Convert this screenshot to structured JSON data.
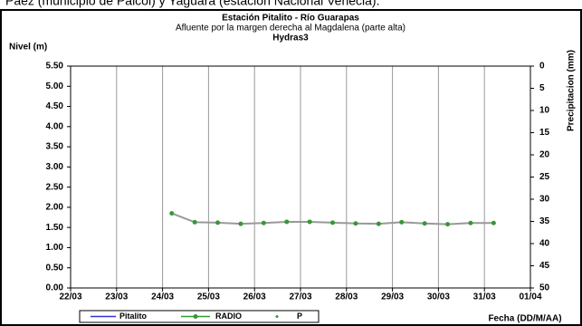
{
  "header_text": "Páez (municipio de Paicol) y Yaguará (estación Nacional Venecia).",
  "chart_data": {
    "type": "line",
    "title": "Estación Pitalito  - Río Guarapas",
    "subtitle": "Afluente por la margen derecha al Magdalena (parte alta)",
    "source": "Hydras3",
    "y_label": "Nivel (m)",
    "y2_label": "Precipitacion (mm)",
    "x_label": "Fecha (DD/M/AA)",
    "x": [
      2.2,
      2.7,
      3.2,
      3.7,
      4.2,
      4.7,
      5.2,
      5.7,
      6.2,
      6.7,
      7.2,
      7.7,
      8.2,
      8.7,
      9.2
    ],
    "series": [
      {
        "name": "Pitalito",
        "color": "#3333cc",
        "values": [
          null,
          null,
          null,
          null,
          null,
          null,
          null,
          null,
          null,
          null,
          null,
          null,
          null,
          null,
          null
        ]
      },
      {
        "name": "RADIO",
        "color": "#339933",
        "line_color": "#999999",
        "values": [
          1.85,
          1.63,
          1.62,
          1.59,
          1.61,
          1.64,
          1.64,
          1.62,
          1.6,
          1.59,
          1.63,
          1.6,
          1.58,
          1.61,
          1.61
        ]
      },
      {
        "name": "P",
        "color": "#339933",
        "axis": "y2",
        "values": [
          null,
          null,
          null,
          null,
          null,
          null,
          null,
          null,
          null,
          null,
          null,
          null,
          null,
          null,
          null
        ]
      }
    ],
    "xlim": [
      0,
      10
    ],
    "xticks": [
      {
        "value": 0,
        "label": "22/03"
      },
      {
        "value": 1,
        "label": "23/03"
      },
      {
        "value": 2,
        "label": "24/03"
      },
      {
        "value": 3,
        "label": "25/03"
      },
      {
        "value": 4,
        "label": "26/03"
      },
      {
        "value": 5,
        "label": "27/03"
      },
      {
        "value": 6,
        "label": "28/03"
      },
      {
        "value": 7,
        "label": "29/03"
      },
      {
        "value": 8,
        "label": "30/03"
      },
      {
        "value": 9,
        "label": "31/03"
      },
      {
        "value": 10,
        "label": "01/04"
      }
    ],
    "ylim": [
      0,
      5.5
    ],
    "yticks": [
      {
        "value": 0,
        "label": "0.00"
      },
      {
        "value": 0.5,
        "label": "0.50"
      },
      {
        "value": 1,
        "label": "1.00"
      },
      {
        "value": 1.5,
        "label": "1.50"
      },
      {
        "value": 2,
        "label": "2.00"
      },
      {
        "value": 2.5,
        "label": "2.50"
      },
      {
        "value": 3,
        "label": "3.00"
      },
      {
        "value": 3.5,
        "label": "3.50"
      },
      {
        "value": 4,
        "label": "4.00"
      },
      {
        "value": 4.5,
        "label": "4.50"
      },
      {
        "value": 5,
        "label": "5.00"
      },
      {
        "value": 5.5,
        "label": "5.50"
      }
    ],
    "y2lim": [
      50,
      0
    ],
    "y2ticks": [
      0,
      5,
      10,
      15,
      20,
      25,
      30,
      35,
      40,
      45,
      50
    ],
    "grid": "x"
  }
}
